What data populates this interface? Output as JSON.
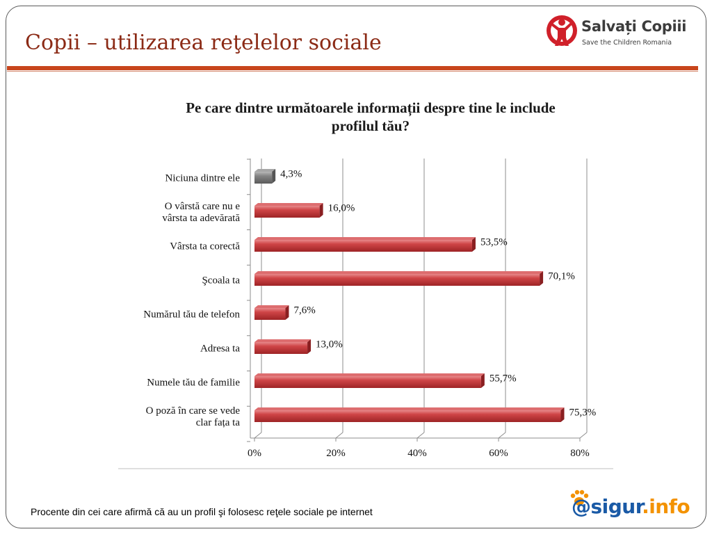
{
  "slide": {
    "title": "Copii – utilizarea reţelelor sociale",
    "footnote": "Procente din cei care afirmă că au un profil şi folosesc reţele sociale pe internet"
  },
  "logos": {
    "salvati_copiii": {
      "name": "Salvați Copiii",
      "tagline": "Save the Children Romania",
      "icon": "child-figure-heart-icon"
    },
    "sigur_info": {
      "prefix": "@sigur",
      "suffix": ".info",
      "icon": "paw-icon"
    }
  },
  "colors": {
    "title": "#8b2a15",
    "rule": "#c8451c",
    "bar_red": "#c0393b",
    "bar_grey": "#7a7a7a",
    "grid": "#8c8c8c"
  },
  "chart_data": {
    "type": "bar",
    "orientation": "horizontal",
    "title_lines": [
      "Pe care dintre următoarele informații despre tine le include",
      "profilul tău?"
    ],
    "categories": [
      [
        "Niciuna dintre ele"
      ],
      [
        "O vârstă care nu e",
        "vârsta ta adevărată"
      ],
      [
        "Vârsta ta corectă"
      ],
      [
        "Şcoala ta"
      ],
      [
        "Numărul tău de telefon"
      ],
      [
        "Adresa ta"
      ],
      [
        "Numele tău de familie"
      ],
      [
        "O poză în care se vede",
        "clar fața ta"
      ]
    ],
    "values": [
      4.3,
      16.0,
      53.5,
      70.1,
      7.6,
      13.0,
      55.7,
      75.3
    ],
    "value_labels": [
      "4,3%",
      "16,0%",
      "53,5%",
      "70,1%",
      "7,6%",
      "13,0%",
      "55,7%",
      "75,3%"
    ],
    "bar_colors": [
      "grey",
      "red",
      "red",
      "red",
      "red",
      "red",
      "red",
      "red"
    ],
    "xlim": [
      0,
      80
    ],
    "x_ticks": [
      0,
      20,
      40,
      60,
      80
    ],
    "x_tick_labels": [
      "0%",
      "20%",
      "40%",
      "60%",
      "80%"
    ],
    "grid": true,
    "legend": false
  }
}
